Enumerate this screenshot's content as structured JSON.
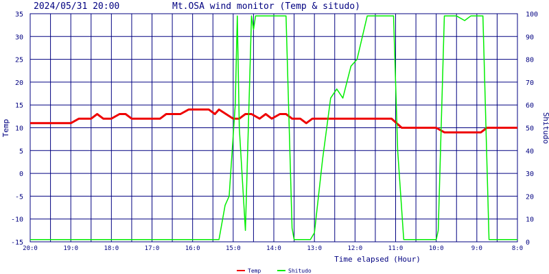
{
  "header": {
    "timestamp": "2024/05/31 20:00",
    "title": "Mt.OSA wind monitor (Temp & situdo)"
  },
  "colors": {
    "grid": "#000080",
    "temp": "#ee0000",
    "shitudo": "#00ee00",
    "text": "#000080"
  },
  "chart_data": {
    "type": "line",
    "title": "Mt.OSA wind monitor (Temp & situdo)",
    "xlabel": "Time elapsed (Hour)",
    "ylabel_left": "Temp",
    "ylabel_right": "Shitudo",
    "x_ticks": [
      "20:0",
      "19:0",
      "18:0",
      "17:0",
      "16:0",
      "15:0",
      "14:0",
      "13:0",
      "12:0",
      "11:0",
      "10:0",
      "9:0",
      "8:0"
    ],
    "ylim_left": [
      -15,
      35
    ],
    "y_ticks_left": [
      35,
      30,
      25,
      20,
      15,
      10,
      5,
      0,
      -5,
      -10,
      -15
    ],
    "ylim_right": [
      0,
      100
    ],
    "y_ticks_right": [
      100,
      90,
      80,
      70,
      60,
      50,
      40,
      30,
      20,
      10,
      0
    ],
    "grid": true,
    "legend": "bottom-center",
    "x_note": "x = hours elapsed from 20:00 (0 = 20:0, 12 = 8:0)",
    "series": [
      {
        "name": "Temp",
        "axis": "left",
        "points": [
          [
            0,
            11
          ],
          [
            1,
            11
          ],
          [
            1.2,
            12
          ],
          [
            1.5,
            12
          ],
          [
            1.65,
            13
          ],
          [
            1.8,
            12
          ],
          [
            2.0,
            12
          ],
          [
            2.2,
            13
          ],
          [
            2.35,
            13
          ],
          [
            2.5,
            12
          ],
          [
            3.2,
            12
          ],
          [
            3.35,
            13
          ],
          [
            3.7,
            13
          ],
          [
            3.9,
            14
          ],
          [
            4.4,
            14
          ],
          [
            4.55,
            13
          ],
          [
            4.65,
            14
          ],
          [
            5.0,
            12
          ],
          [
            5.15,
            12
          ],
          [
            5.3,
            13
          ],
          [
            5.45,
            13
          ],
          [
            5.65,
            12
          ],
          [
            5.8,
            13
          ],
          [
            5.95,
            12
          ],
          [
            6.15,
            13
          ],
          [
            6.3,
            13
          ],
          [
            6.45,
            12
          ],
          [
            6.65,
            12
          ],
          [
            6.8,
            11
          ],
          [
            6.95,
            12
          ],
          [
            8.9,
            12
          ],
          [
            9.15,
            10
          ],
          [
            10.0,
            10
          ],
          [
            10.2,
            9
          ],
          [
            11.1,
            9
          ],
          [
            11.25,
            10
          ],
          [
            12,
            10
          ]
        ]
      },
      {
        "name": "Shitudo",
        "axis": "right",
        "points": [
          [
            0,
            1
          ],
          [
            4.65,
            1
          ],
          [
            4.8,
            16
          ],
          [
            4.9,
            20
          ],
          [
            5.05,
            60
          ],
          [
            5.1,
            99
          ],
          [
            5.15,
            50
          ],
          [
            5.3,
            5
          ],
          [
            5.45,
            99
          ],
          [
            5.5,
            93
          ],
          [
            5.55,
            99
          ],
          [
            6.3,
            99
          ],
          [
            6.45,
            6
          ],
          [
            6.5,
            1
          ],
          [
            6.9,
            1
          ],
          [
            7.0,
            4
          ],
          [
            7.2,
            36
          ],
          [
            7.4,
            63
          ],
          [
            7.55,
            67
          ],
          [
            7.7,
            63
          ],
          [
            7.9,
            77
          ],
          [
            8.05,
            80
          ],
          [
            8.3,
            99
          ],
          [
            8.95,
            99
          ],
          [
            9.05,
            40
          ],
          [
            9.2,
            1
          ],
          [
            10.0,
            1
          ],
          [
            10.05,
            5
          ],
          [
            10.2,
            99
          ],
          [
            10.5,
            99
          ],
          [
            10.7,
            97
          ],
          [
            10.85,
            99
          ],
          [
            11.15,
            99
          ],
          [
            11.3,
            1
          ],
          [
            12,
            1
          ]
        ]
      }
    ]
  }
}
